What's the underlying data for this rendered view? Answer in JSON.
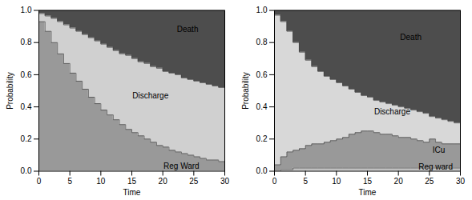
{
  "chart_data": [
    {
      "type": "area",
      "xlabel": "Time",
      "ylabel": "Probability",
      "xlim": [
        0,
        30
      ],
      "ylim": [
        0,
        1.0
      ],
      "xticks": [
        0,
        5,
        10,
        15,
        20,
        25,
        30
      ],
      "yticks": [
        {
          "value": 0.0,
          "label": "0.0"
        },
        0.2,
        0.4,
        0.6,
        0.8,
        {
          "value": 1.0,
          "label": "1.0"
        }
      ],
      "x": [
        0,
        1,
        2,
        3,
        4,
        5,
        6,
        7,
        8,
        9,
        10,
        11,
        12,
        13,
        14,
        15,
        16,
        17,
        18,
        19,
        20,
        21,
        22,
        23,
        24,
        25,
        26,
        27,
        28,
        29,
        30
      ],
      "series": [
        {
          "name": "Reg Ward",
          "color": "#999999",
          "values": [
            0.93,
            0.87,
            0.8,
            0.73,
            0.67,
            0.61,
            0.56,
            0.51,
            0.46,
            0.42,
            0.38,
            0.35,
            0.32,
            0.29,
            0.26,
            0.24,
            0.22,
            0.2,
            0.18,
            0.16,
            0.15,
            0.13,
            0.12,
            0.11,
            0.1,
            0.09,
            0.08,
            0.07,
            0.07,
            0.06,
            0.05
          ]
        },
        {
          "name": "Discharge",
          "color": "#d0d0d0",
          "values": [
            0.98,
            0.965,
            0.95,
            0.93,
            0.91,
            0.89,
            0.87,
            0.85,
            0.83,
            0.81,
            0.79,
            0.77,
            0.75,
            0.73,
            0.72,
            0.7,
            0.68,
            0.67,
            0.65,
            0.64,
            0.62,
            0.61,
            0.6,
            0.58,
            0.57,
            0.56,
            0.55,
            0.54,
            0.53,
            0.52,
            0.51
          ]
        },
        {
          "name": "Death",
          "color": "#4d4d4d",
          "values": [
            1.0,
            1.0,
            1.0,
            1.0,
            1.0,
            1.0,
            1.0,
            1.0,
            1.0,
            1.0,
            1.0,
            1.0,
            1.0,
            1.0,
            1.0,
            1.0,
            1.0,
            1.0,
            1.0,
            1.0,
            1.0,
            1.0,
            1.0,
            1.0,
            1.0,
            1.0,
            1.0,
            1.0,
            1.0,
            1.0,
            1.0
          ]
        }
      ],
      "annotations": [
        {
          "text": "Reg Ward",
          "x": 23,
          "y": 0.03
        },
        {
          "text": "Discharge",
          "x": 18,
          "y": 0.47
        },
        {
          "text": "Death",
          "x": 24,
          "y": 0.88
        }
      ]
    },
    {
      "type": "area",
      "xlabel": "Time",
      "ylabel": "Probability",
      "xlim": [
        0,
        30
      ],
      "ylim": [
        0,
        1.0
      ],
      "xticks": [
        0,
        5,
        10,
        15,
        20,
        25,
        30
      ],
      "yticks": [
        {
          "value": 0.0,
          "label": "0.0"
        },
        0.2,
        0.4,
        0.6,
        0.8,
        {
          "value": 1.0,
          "label": "1.0"
        }
      ],
      "x": [
        0,
        1,
        2,
        3,
        4,
        5,
        6,
        7,
        8,
        9,
        10,
        11,
        12,
        13,
        14,
        15,
        16,
        17,
        18,
        19,
        20,
        21,
        22,
        23,
        24,
        25,
        26,
        27,
        28,
        29,
        30
      ],
      "series": [
        {
          "name": "Reg ward",
          "color": "#c0c0c0",
          "values": [
            0.0,
            0.01,
            0.01,
            0.02,
            0.02,
            0.02,
            0.02,
            0.02,
            0.02,
            0.02,
            0.02,
            0.02,
            0.02,
            0.02,
            0.02,
            0.02,
            0.02,
            0.02,
            0.02,
            0.02,
            0.02,
            0.02,
            0.02,
            0.02,
            0.02,
            0.02,
            0.02,
            0.02,
            0.02,
            0.02,
            0.02
          ]
        },
        {
          "name": "ICu",
          "color": "#999999",
          "values": [
            0.04,
            0.09,
            0.12,
            0.13,
            0.14,
            0.16,
            0.17,
            0.17,
            0.18,
            0.19,
            0.2,
            0.21,
            0.23,
            0.24,
            0.25,
            0.25,
            0.24,
            0.23,
            0.23,
            0.22,
            0.21,
            0.21,
            0.2,
            0.19,
            0.18,
            0.2,
            0.18,
            0.17,
            0.17,
            0.17,
            0.17
          ]
        },
        {
          "name": "Discharge",
          "color": "#d8d8d8",
          "values": [
            0.97,
            0.93,
            0.87,
            0.8,
            0.74,
            0.69,
            0.65,
            0.62,
            0.59,
            0.57,
            0.55,
            0.53,
            0.51,
            0.49,
            0.47,
            0.46,
            0.44,
            0.43,
            0.42,
            0.41,
            0.4,
            0.39,
            0.38,
            0.37,
            0.36,
            0.34,
            0.33,
            0.32,
            0.31,
            0.3,
            0.3
          ]
        },
        {
          "name": "Death",
          "color": "#4d4d4d",
          "values": [
            1.0,
            1.0,
            1.0,
            1.0,
            1.0,
            1.0,
            1.0,
            1.0,
            1.0,
            1.0,
            1.0,
            1.0,
            1.0,
            1.0,
            1.0,
            1.0,
            1.0,
            1.0,
            1.0,
            1.0,
            1.0,
            1.0,
            1.0,
            1.0,
            1.0,
            1.0,
            1.0,
            1.0,
            1.0,
            1.0,
            1.0
          ]
        }
      ],
      "annotations": [
        {
          "text": "Reg ward",
          "x": 26,
          "y": 0.025
        },
        {
          "text": "ICu",
          "x": 26.5,
          "y": 0.13
        },
        {
          "text": "Discharge",
          "x": 19,
          "y": 0.37
        },
        {
          "text": "Death",
          "x": 22,
          "y": 0.83
        }
      ]
    }
  ]
}
